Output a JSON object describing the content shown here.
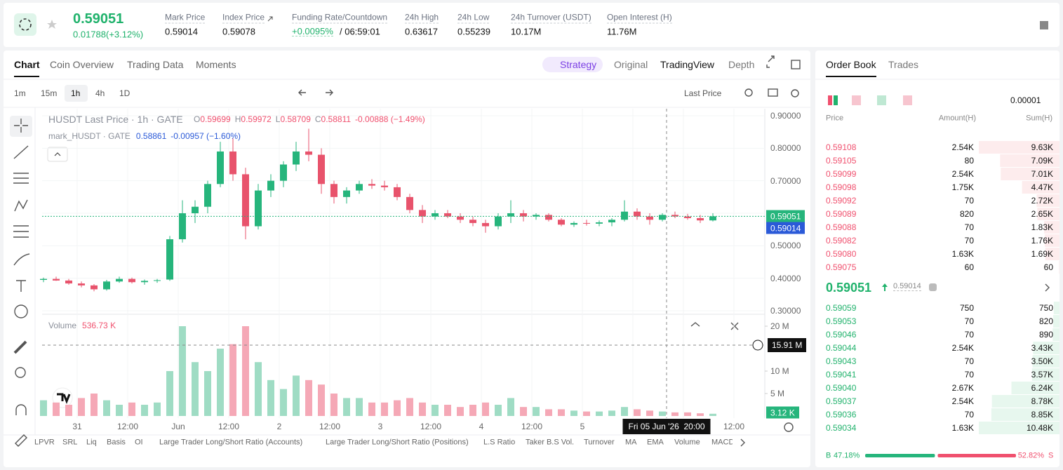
{
  "header": {
    "price": "0.59051",
    "change": "0.01788(+3.12%)",
    "stats": [
      {
        "label": "Mark Price",
        "value": "0.59014"
      },
      {
        "label": "Index Price",
        "value": "0.59078"
      },
      {
        "label": "Funding Rate/Countdown",
        "value": "+0.0095%",
        "extra": "/ 06:59:01"
      },
      {
        "label": "24h High",
        "value": "0.63617"
      },
      {
        "label": "24h Low",
        "value": "0.55239"
      },
      {
        "label": "24h Turnover (USDT)",
        "value": "10.17M"
      },
      {
        "label": "Open Interest (H)",
        "value": "11.76M"
      }
    ]
  },
  "tabs": [
    "Chart",
    "Coin Overview",
    "Trading Data",
    "Moments"
  ],
  "views": [
    "Strategy",
    "Original",
    "TradingView",
    "Depth"
  ],
  "intervals": [
    "1m",
    "15m",
    "1h",
    "4h",
    "1D"
  ],
  "price_source": "Last Price",
  "chart_data": {
    "type": "candlestick",
    "title": "HUSDT Last Price · 1h · GATE",
    "ohlc": [
      {
        "key": "O",
        "value": "0.59699"
      },
      {
        "key": "H",
        "value": "0.59972"
      },
      {
        "key": "L",
        "value": "0.58709"
      },
      {
        "key": "C",
        "value": "0.58811"
      }
    ],
    "change": "-0.00888 (−1.49%)",
    "mark_legend": {
      "name": "mark_HUSDT · GATE",
      "value": "0.58861",
      "change": "-0.00957 (−1.60%)"
    },
    "x_labels": [
      "31",
      "12:00",
      "Jun",
      "12:00",
      "2",
      "12:00",
      "3",
      "12:00",
      "4",
      "12:00",
      "5",
      null,
      null,
      "12:00"
    ],
    "candles": [
      [
        0.395,
        0.402,
        0.388,
        0.398
      ],
      [
        0.398,
        0.405,
        0.392,
        0.393
      ],
      [
        0.393,
        0.398,
        0.38,
        0.384
      ],
      [
        0.384,
        0.39,
        0.372,
        0.378
      ],
      [
        0.378,
        0.382,
        0.36,
        0.366
      ],
      [
        0.366,
        0.395,
        0.362,
        0.39
      ],
      [
        0.39,
        0.405,
        0.386,
        0.398
      ],
      [
        0.398,
        0.402,
        0.384,
        0.388
      ],
      [
        0.388,
        0.396,
        0.38,
        0.392
      ],
      [
        0.392,
        0.398,
        0.386,
        0.394
      ],
      [
        0.396,
        0.53,
        0.392,
        0.52
      ],
      [
        0.52,
        0.64,
        0.51,
        0.6
      ],
      [
        0.6,
        0.64,
        0.57,
        0.62
      ],
      [
        0.62,
        0.7,
        0.6,
        0.69
      ],
      [
        0.69,
        0.82,
        0.68,
        0.79
      ],
      [
        0.79,
        0.83,
        0.7,
        0.72
      ],
      [
        0.72,
        0.74,
        0.52,
        0.56
      ],
      [
        0.56,
        0.69,
        0.55,
        0.67
      ],
      [
        0.67,
        0.72,
        0.65,
        0.7
      ],
      [
        0.7,
        0.76,
        0.68,
        0.75
      ],
      [
        0.75,
        0.82,
        0.73,
        0.79
      ],
      [
        0.79,
        0.86,
        0.76,
        0.78
      ],
      [
        0.78,
        0.8,
        0.66,
        0.69
      ],
      [
        0.69,
        0.7,
        0.63,
        0.65
      ],
      [
        0.65,
        0.68,
        0.63,
        0.67
      ],
      [
        0.67,
        0.7,
        0.66,
        0.69
      ],
      [
        0.69,
        0.705,
        0.675,
        0.685
      ],
      [
        0.685,
        0.7,
        0.67,
        0.68
      ],
      [
        0.68,
        0.69,
        0.64,
        0.65
      ],
      [
        0.65,
        0.66,
        0.6,
        0.61
      ],
      [
        0.61,
        0.625,
        0.57,
        0.59
      ],
      [
        0.59,
        0.61,
        0.58,
        0.6
      ],
      [
        0.6,
        0.61,
        0.585,
        0.59
      ],
      [
        0.59,
        0.6,
        0.57,
        0.58
      ],
      [
        0.58,
        0.59,
        0.56,
        0.57
      ],
      [
        0.57,
        0.58,
        0.54,
        0.56
      ],
      [
        0.56,
        0.6,
        0.55,
        0.59
      ],
      [
        0.59,
        0.64,
        0.57,
        0.6
      ],
      [
        0.6,
        0.61,
        0.575,
        0.59
      ],
      [
        0.59,
        0.6,
        0.58,
        0.595
      ],
      [
        0.595,
        0.6,
        0.575,
        0.58
      ],
      [
        0.58,
        0.585,
        0.56,
        0.565
      ],
      [
        0.565,
        0.575,
        0.558,
        0.57
      ],
      [
        0.57,
        0.58,
        0.562,
        0.568
      ],
      [
        0.568,
        0.578,
        0.56,
        0.572
      ],
      [
        0.572,
        0.585,
        0.56,
        0.58
      ],
      [
        0.58,
        0.64,
        0.575,
        0.605
      ],
      [
        0.605,
        0.615,
        0.58,
        0.59
      ],
      [
        0.59,
        0.6,
        0.565,
        0.58
      ],
      [
        0.58,
        0.6,
        0.575,
        0.595
      ],
      [
        0.595,
        0.605,
        0.585,
        0.59
      ],
      [
        0.59,
        0.598,
        0.58,
        0.585
      ],
      [
        0.585,
        0.595,
        0.57,
        0.578
      ],
      [
        0.578,
        0.6,
        0.575,
        0.5905
      ]
    ],
    "ylim": [
      0.3,
      0.9
    ],
    "yticks": [
      {
        "value": 0.9,
        "label": "0.90000"
      },
      {
        "value": 0.8,
        "label": "0.80000"
      },
      {
        "value": 0.7,
        "label": "0.70000"
      },
      {
        "value": 0.6,
        "label": "0.60000"
      },
      {
        "value": 0.5,
        "label": "0.50000"
      },
      {
        "value": 0.4,
        "label": "0.40000"
      },
      {
        "value": 0.3,
        "label": "0.30000"
      }
    ],
    "last_price": 0.59051,
    "mark_price": 0.59014,
    "volume": {
      "title": "Volume",
      "value_label": "536.73 K",
      "values": [
        3500000,
        3000000,
        2500000,
        4000000,
        5000000,
        3500000,
        2500000,
        3000000,
        2500000,
        3000000,
        10000000,
        20000000,
        12000000,
        10000000,
        15000000,
        16000000,
        20000000,
        12000000,
        8000000,
        6000000,
        9000000,
        8000000,
        7000000,
        5000000,
        4000000,
        4000000,
        3000000,
        3000000,
        3500000,
        4000000,
        3000000,
        2500000,
        2500000,
        2000000,
        2500000,
        3000000,
        2500000,
        4000000,
        2000000,
        2000000,
        1500000,
        1500000,
        1200000,
        1000000,
        1000000,
        1200000,
        2000000,
        1500000,
        1200000,
        1000000,
        800000,
        800000,
        600000,
        500000
      ],
      "ylim": [
        0,
        20000000
      ],
      "yticks": [
        {
          "value": 20000000,
          "label": "20 M"
        },
        {
          "value": 10000000,
          "label": "10 M"
        },
        {
          "value": 5000000,
          "label": "5 M"
        }
      ],
      "last_label": "3.12 K"
    },
    "crosshair": {
      "volume_label": "15.91 M",
      "time_label": "Fri 05 Jun '26  20:00"
    }
  },
  "indicators": [
    "LPVR",
    "SRL",
    "Liq",
    "Basis",
    "OI",
    "Large Trader Long/Short Ratio (Accounts)",
    "Large Trader Long/Short Ratio (Positions)",
    "L.S Ratio",
    "Taker B.S Vol.",
    "Turnover",
    "MA",
    "EMA",
    "Volume",
    "MACD"
  ],
  "order_book": {
    "tabs": [
      "Order Book",
      "Trades"
    ],
    "precision": "0.00001",
    "columns": [
      "Price",
      "Amount(H)",
      "Sum(H)"
    ],
    "asks": {
      "prices": [
        "0.59108",
        "0.59105",
        "0.59099",
        "0.59098",
        "0.59092",
        "0.59089",
        "0.59088",
        "0.59082",
        "0.59080",
        "0.59075"
      ],
      "amounts": [
        "2.54K",
        "80",
        "2.54K",
        "1.75K",
        "70",
        "820",
        "70",
        "70",
        "1.63K",
        "60"
      ],
      "sums": {
        "values": [
          9630,
          7090,
          7010,
          4470,
          2720,
          2650,
          1830,
          1760,
          1690,
          60
        ],
        "value_labels": [
          "9.63K",
          "7.09K",
          "7.01K",
          "4.47K",
          "2.72K",
          "2.65K",
          "1.83K",
          "1.76K",
          "1.69K",
          "60"
        ]
      }
    },
    "mid": {
      "price": "0.59051",
      "mark": "0.59014"
    },
    "bids": {
      "prices": [
        "0.59059",
        "0.59053",
        "0.59046",
        "0.59044",
        "0.59043",
        "0.59041",
        "0.59040",
        "0.59037",
        "0.59036",
        "0.59034"
      ],
      "amounts": [
        "750",
        "70",
        "70",
        "2.54K",
        "70",
        "70",
        "2.67K",
        "2.54K",
        "70",
        "1.63K"
      ],
      "sums": {
        "values": [
          750,
          820,
          890,
          3430,
          3500,
          3570,
          6240,
          8780,
          8850,
          10480
        ],
        "value_labels": [
          "750",
          "820",
          "890",
          "3.43K",
          "3.50K",
          "3.57K",
          "6.24K",
          "8.78K",
          "8.85K",
          "10.48K"
        ]
      }
    },
    "ratio": {
      "buy_key": "B",
      "buy": {
        "value": 47.18,
        "label": "47.18%"
      },
      "sell": {
        "value": 52.82,
        "label": "52.82%"
      },
      "sell_key": "S"
    }
  }
}
